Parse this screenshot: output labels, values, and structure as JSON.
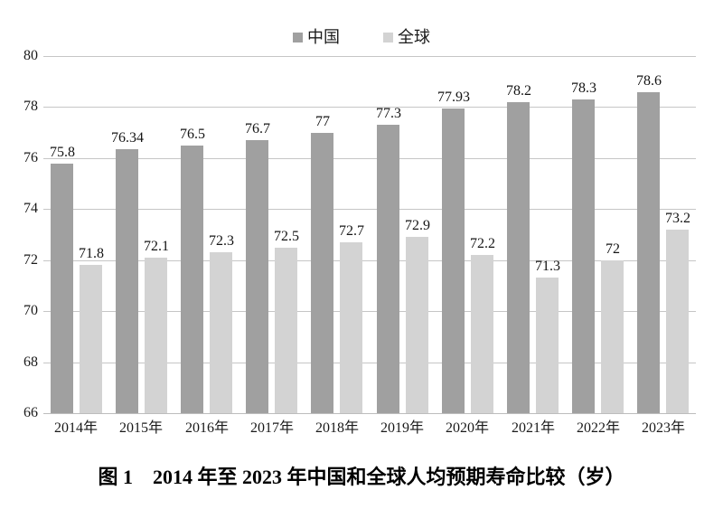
{
  "figure": {
    "caption": "图 1　2014 年至 2023 年中国和全球人均预期寿命比较（岁）"
  },
  "chart_data": {
    "type": "bar",
    "title": "图 1　2014 年至 2023 年中国和全球人均预期寿命比较（岁）",
    "categories": [
      "2014年",
      "2015年",
      "2016年",
      "2017年",
      "2018年",
      "2019年",
      "2020年",
      "2021年",
      "2022年",
      "2023年"
    ],
    "series": [
      {
        "name": "中国",
        "color": "#a0a0a0",
        "values": [
          75.8,
          76.34,
          76.5,
          76.7,
          77,
          77.3,
          77.93,
          78.2,
          78.3,
          78.6
        ]
      },
      {
        "name": "全球",
        "color": "#d3d3d3",
        "values": [
          71.8,
          72.1,
          72.3,
          72.5,
          72.7,
          72.9,
          72.2,
          71.3,
          72,
          73.2
        ]
      }
    ],
    "xlabel": "",
    "ylabel": "",
    "ylim": [
      66,
      80
    ],
    "ytick_step": 2,
    "grid": true,
    "legend_position": "top",
    "gridline_color": "#c6c6c6",
    "baseline_color": "#bdbdbd",
    "text_color": "#1a1a1a",
    "value_labels_shown": true
  }
}
